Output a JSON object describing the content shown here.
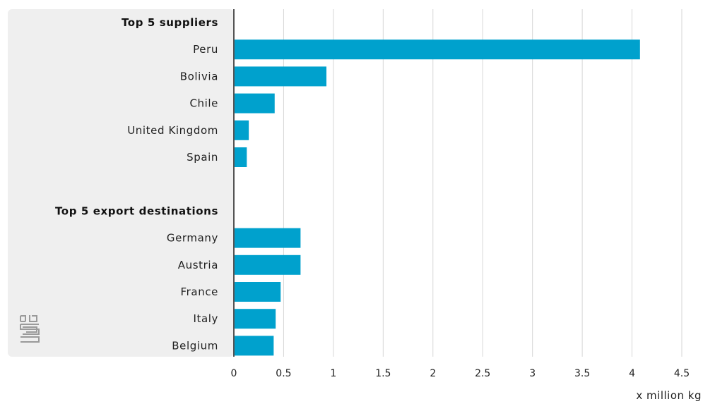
{
  "chart_data": {
    "type": "bar",
    "orientation": "horizontal",
    "unit_label": "x million kg",
    "xlim": [
      0,
      4.5
    ],
    "ticks": [
      "0",
      "0.5",
      "1",
      "1.5",
      "2",
      "2.5",
      "3",
      "3.5",
      "4",
      "4.5"
    ],
    "grid": true,
    "groups": [
      {
        "title": "Top 5 suppliers",
        "categories": [
          "Peru",
          "Bolivia",
          "Chile",
          "United Kingdom",
          "Spain"
        ],
        "values": [
          4.08,
          0.93,
          0.41,
          0.15,
          0.13
        ]
      },
      {
        "title": "Top 5 export destinations",
        "categories": [
          "Germany",
          "Austria",
          "France",
          "Italy",
          "Belgium"
        ],
        "values": [
          0.67,
          0.67,
          0.47,
          0.42,
          0.4
        ]
      }
    ],
    "colors": {
      "bar": "#00a1cd",
      "panel": "#efefef",
      "grid": "#d6d6d6",
      "axis": "#555555",
      "logo": "#9a9a9a"
    }
  },
  "logo_icon": "cbs-logo-icon"
}
